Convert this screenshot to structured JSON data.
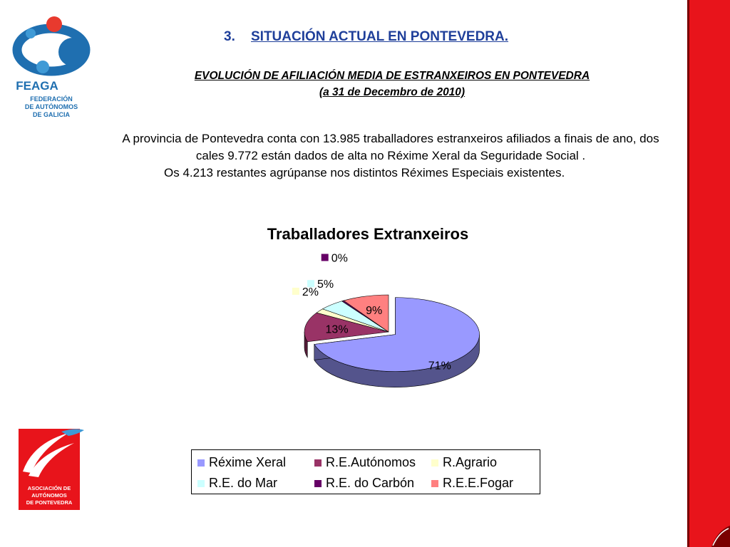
{
  "header": {
    "number": "3.",
    "title": "SITUACIÓN ACTUAL EN PONTEVEDRA."
  },
  "subtitle": {
    "line1": "EVOLUCIÓN DE AFILIACIÓN MEDIA DE ESTRANXEIROS EN PONTEVEDRA",
    "line2": "(a 31 de Decembro de 2010)"
  },
  "body": {
    "paragraph1": "A provincia de Pontevedra conta con 13.985 traballadores estranxeiros afiliados a finais de ano, dos cales 9.772 están dados de alta no Réxime Xeral da Seguridade Social .",
    "paragraph2": "Os 4.213 restantes agrúpanse nos distintos Réximes Especiais existentes."
  },
  "logos": {
    "top": {
      "name": "FEAGA",
      "line1": "FEDERACIÓN",
      "line2": "DE AUTÓNOMOS",
      "line3": "DE GALICIA"
    },
    "bottom": {
      "line1": "ASOCIACIÓN DE",
      "line2": "AUTÓNOMOS",
      "line3": "DE PONTEVEDRA"
    }
  },
  "colors": {
    "heading": "#1f3f9a",
    "accent_red": "#e8141b"
  },
  "chart_data": {
    "type": "pie",
    "title": "Traballadores Extranxeiros",
    "legend_position": "bottom",
    "slices": [
      {
        "name": "Réxime Xeral",
        "value": 71,
        "label": "71%",
        "color": "#9999ff"
      },
      {
        "name": "R.E.Autónomos",
        "value": 13,
        "label": "13%",
        "color": "#993366"
      },
      {
        "name": "R.Agrario",
        "value": 2,
        "label": "2%",
        "color": "#ffffcc"
      },
      {
        "name": "R.E. do Mar",
        "value": 5,
        "label": "5%",
        "color": "#ccffff"
      },
      {
        "name": "R.E. do Carbón",
        "value": 0,
        "label": "0%",
        "color": "#660066"
      },
      {
        "name": "R.E.E.Fogar",
        "value": 9,
        "label": "9%",
        "color": "#ff8080"
      }
    ]
  }
}
